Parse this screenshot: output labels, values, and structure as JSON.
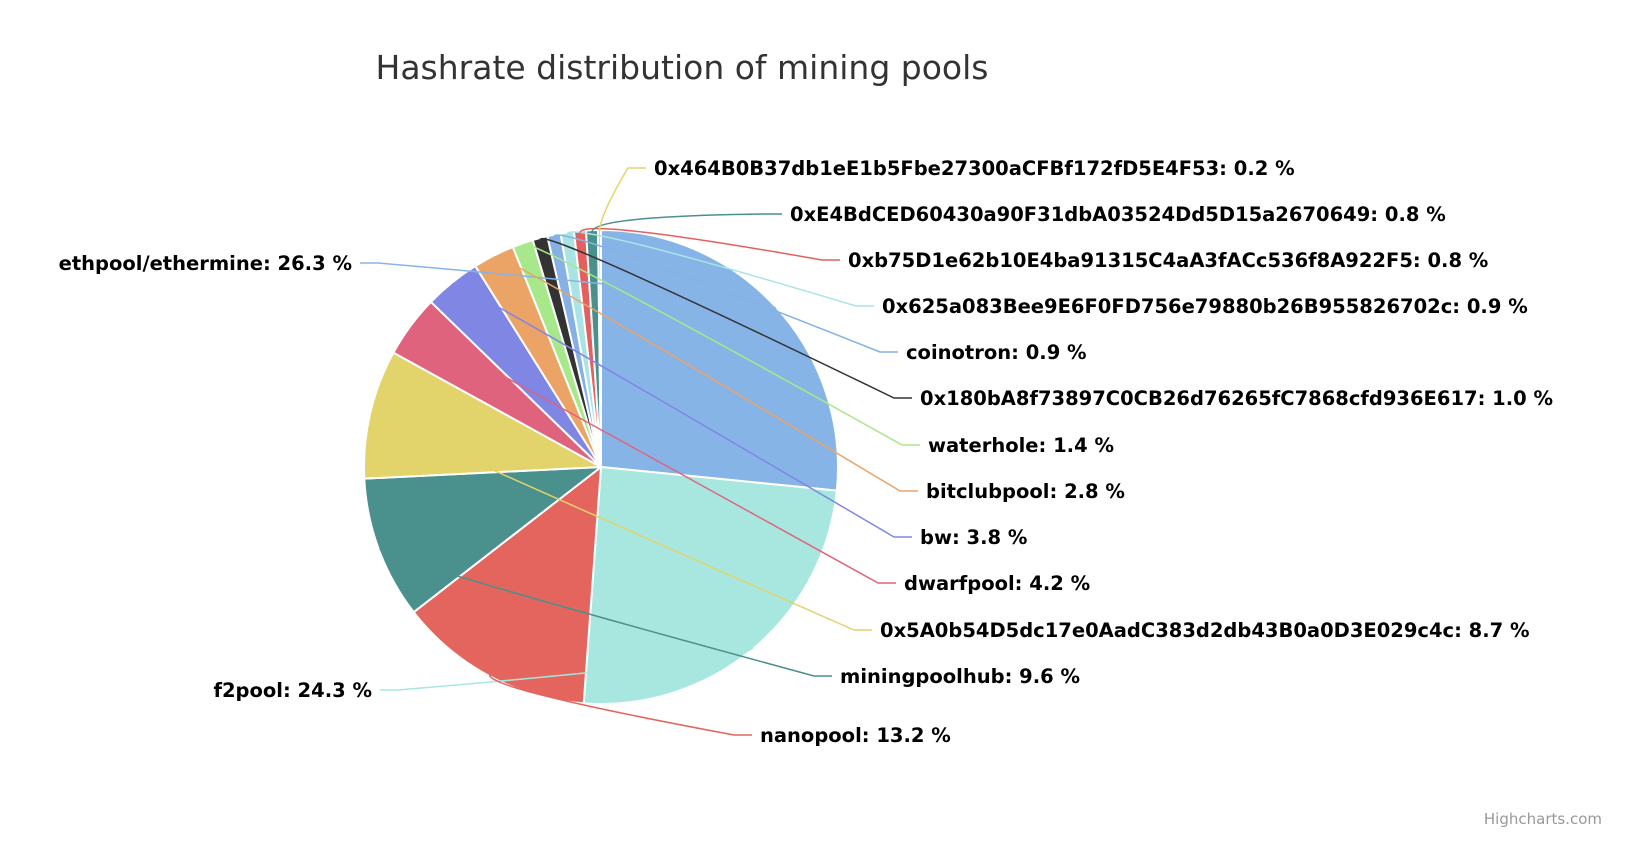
{
  "chart_data": {
    "type": "pie",
    "title": "Hashrate distribution of mining pools",
    "series": [
      {
        "data": [
          {
            "name": "ethpool/ethermine",
            "value": 26.3,
            "color": "#87b4e7"
          },
          {
            "name": "f2pool",
            "value": 24.3,
            "color": "#a7e7e0"
          },
          {
            "name": "nanopool",
            "value": 13.2,
            "color": "#e4655e"
          },
          {
            "name": "miningpoolhub",
            "value": 9.6,
            "color": "#4a908c"
          },
          {
            "name": "0x5A0b54D5dc17e0AadC383d2db43B0a0D3E029c4c",
            "value": 8.7,
            "color": "#e2d36b"
          },
          {
            "name": "dwarfpool",
            "value": 4.2,
            "color": "#e0637e"
          },
          {
            "name": "bw",
            "value": 3.8,
            "color": "#7f86e3"
          },
          {
            "name": "bitclubpool",
            "value": 2.8,
            "color": "#eca466"
          },
          {
            "name": "waterhole",
            "value": 1.4,
            "color": "#a7e88a"
          },
          {
            "name": "0x180bA8f73897C0CB26d76265fC7868cfd936E617",
            "value": 1.0,
            "color": "#333333"
          },
          {
            "name": "coinotron",
            "value": 0.9,
            "color": "#85b1e6"
          },
          {
            "name": "0x625a083Bee9E6F0FD756e79880b26B955826702c",
            "value": 0.9,
            "color": "#a8e4e4"
          },
          {
            "name": "0xb75D1e62b10E4ba91315C4aA3fACc536f8A922F5",
            "value": 0.8,
            "color": "#e4605e"
          },
          {
            "name": "0xE4BdCED60430a90F31dbA03524Dd5D15a2670649",
            "value": 0.8,
            "color": "#4a908c"
          },
          {
            "name": "0x464B0B37db1eE1b5Fbe27300aCFBf172fD5E4F53",
            "value": 0.2,
            "color": "#e6d46b"
          }
        ]
      }
    ],
    "label_format": "{name}: {value} %",
    "credit": "Highcharts.com"
  }
}
